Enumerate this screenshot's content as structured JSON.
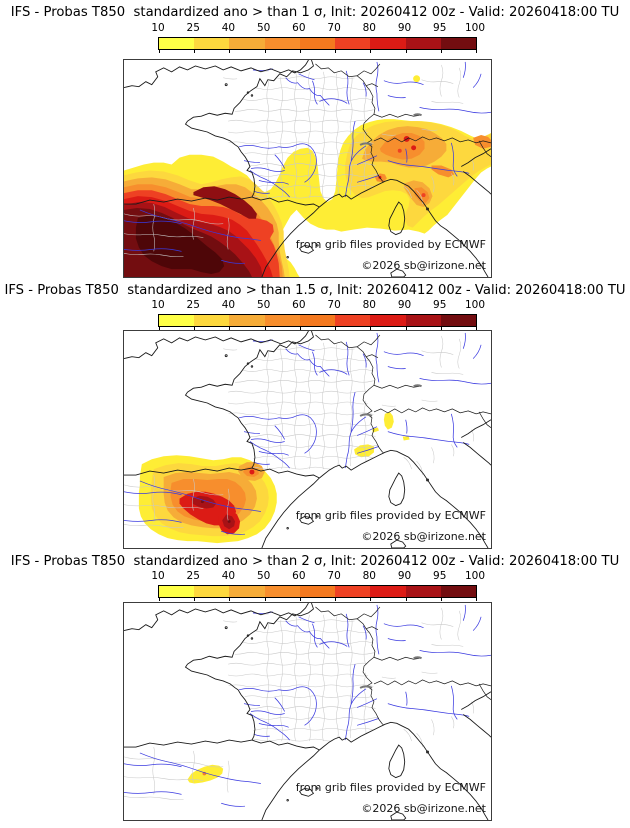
{
  "page": {
    "background": "#ffffff"
  },
  "colorbar": {
    "ticks": [
      "10",
      "25",
      "40",
      "50",
      "60",
      "70",
      "80",
      "90",
      "95",
      "100"
    ],
    "segment_colors": [
      "#feff47",
      "#fdd83e",
      "#f6ac38",
      "#f78e2d",
      "#f4791f",
      "#ee4123",
      "#dc1b15",
      "#a81216",
      "#730d10"
    ]
  },
  "attribution": {
    "line1": "from grib files provided by ECMWF",
    "line2": "©2026 sb@irizone.net"
  },
  "map_style": {
    "coast_color": "#1a1a1a",
    "river_color": "#3a3ae0",
    "admin_color": "#c9c9c9",
    "frame_color": "#3c3c3c",
    "max_anomaly_color": "#4e0608"
  },
  "panels": [
    {
      "title": "IFS - Probas T850  standardized ano > than 1 σ, Init: 20260412 00z - Valid: 20260418:00 TU"
    },
    {
      "title": "IFS - Probas T850  standardized ano > than 1.5 σ, Init: 20260412 00z - Valid: 20260418:00 TU"
    },
    {
      "title": "IFS - Probas T850  standardized ano > than 2 σ, Init: 20260412 00z - Valid: 20260418:00 TU"
    }
  ]
}
